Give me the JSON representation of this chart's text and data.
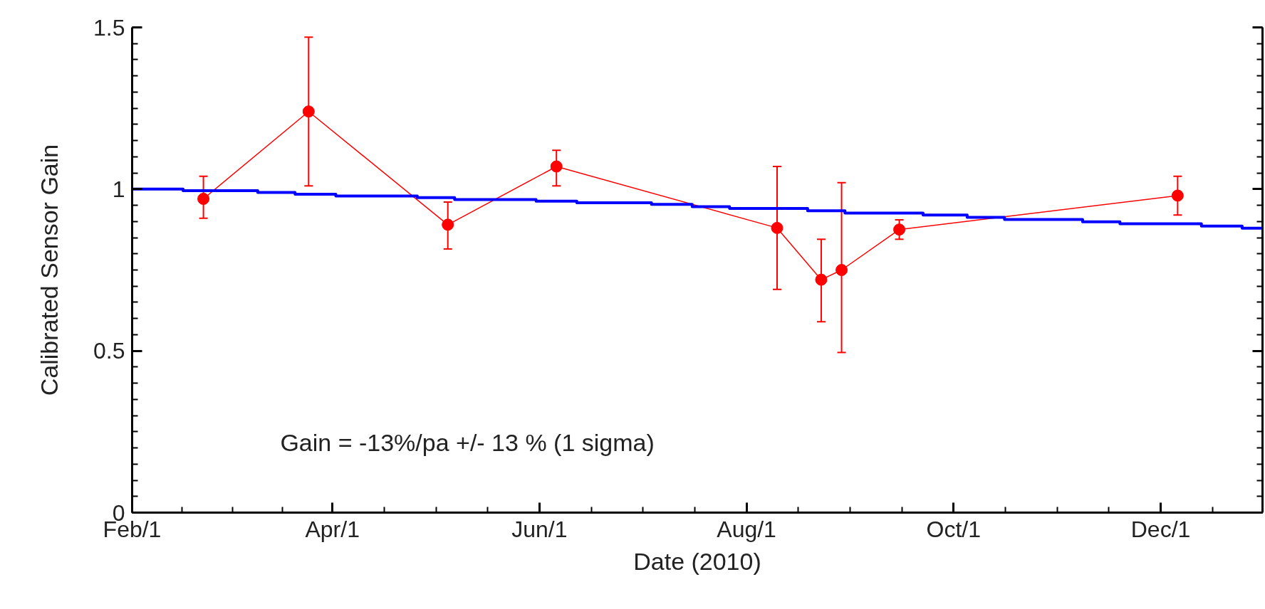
{
  "chart_data": {
    "type": "line",
    "xlabel": "Date (2010)",
    "ylabel": "Calibrated Sensor Gain",
    "xlim": [
      "2010-02-01",
      "2010-12-31"
    ],
    "ylim": [
      0,
      1.5
    ],
    "xticks": [
      {
        "value": "2010-02-01",
        "label": "Feb/1"
      },
      {
        "value": "2010-04-01",
        "label": "Apr/1"
      },
      {
        "value": "2010-06-01",
        "label": "Jun/1"
      },
      {
        "value": "2010-08-01",
        "label": "Aug/1"
      },
      {
        "value": "2010-10-01",
        "label": "Oct/1"
      },
      {
        "value": "2010-12-01",
        "label": "Dec/1"
      }
    ],
    "yticks": [
      0,
      0.5,
      1,
      1.5
    ],
    "grid": false,
    "annotations": [
      "Gain = -13%/pa +/- 13 % (1 sigma)"
    ],
    "series": [
      {
        "color": "#ff0000",
        "marker": "circle",
        "line_style": "solid",
        "x": [
          "2010-02-22",
          "2010-03-25",
          "2010-05-05",
          "2010-06-06",
          "2010-08-10",
          "2010-08-23",
          "2010-08-29",
          "2010-09-15",
          "2010-12-06"
        ],
        "values": [
          0.97,
          1.24,
          0.89,
          1.07,
          0.88,
          0.72,
          0.75,
          0.875,
          0.98
        ],
        "errors": [
          [
            0.91,
            1.04
          ],
          [
            1.01,
            1.47
          ],
          [
            0.815,
            0.96
          ],
          [
            1.01,
            1.12
          ],
          [
            0.69,
            1.07
          ],
          [
            0.59,
            0.845
          ],
          [
            0.495,
            1.02
          ],
          [
            0.845,
            0.905
          ],
          [
            0.92,
            1.04
          ]
        ]
      },
      {
        "type": "step",
        "color": "#0000ff",
        "marker": "none",
        "line_style": "solid",
        "x": [
          "2010-02-01",
          "2010-02-16",
          "2010-03-10",
          "2010-03-21",
          "2010-04-02",
          "2010-04-26",
          "2010-05-07",
          "2010-05-31",
          "2010-06-12",
          "2010-07-04",
          "2010-07-16",
          "2010-07-27",
          "2010-08-19",
          "2010-08-30",
          "2010-09-22",
          "2010-10-05",
          "2010-10-16",
          "2010-11-08",
          "2010-11-19",
          "2010-12-13",
          "2010-12-25",
          "2010-12-31"
        ],
        "values": [
          1.0,
          0.995,
          0.99,
          0.984,
          0.979,
          0.974,
          0.968,
          0.963,
          0.958,
          0.953,
          0.946,
          0.94,
          0.933,
          0.926,
          0.92,
          0.913,
          0.906,
          0.899,
          0.893,
          0.886,
          0.879,
          0.879
        ]
      }
    ]
  }
}
